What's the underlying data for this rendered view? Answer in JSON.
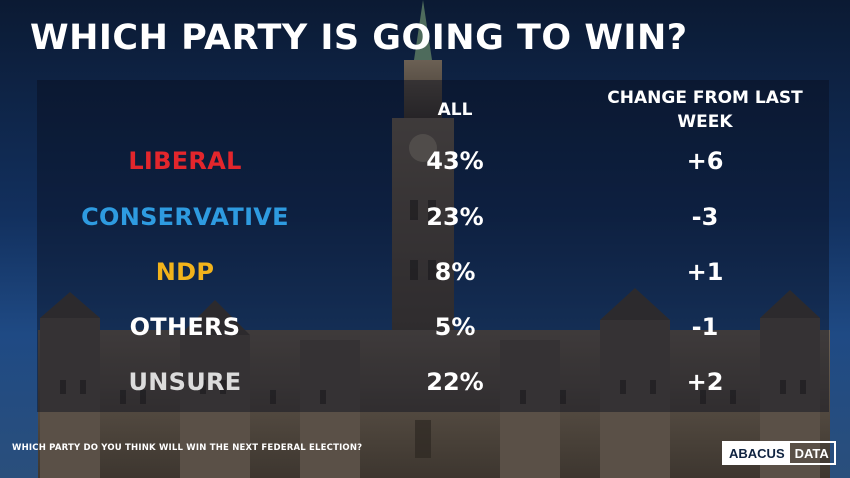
{
  "title": "WHICH PARTY IS GOING TO WIN?",
  "question": "WHICH PARTY DO YOU THINK WILL WIN THE NEXT FEDERAL ELECTION?",
  "logo": {
    "part1": "ABACUS",
    "part2": "DATA"
  },
  "colors": {
    "liberal": "#e3262c",
    "conservative": "#2e9be0",
    "ndp": "#f2b31b",
    "others": "#ffffff",
    "unsure": "#dcdcdc"
  },
  "chart_data": {
    "type": "table",
    "title": "WHICH PARTY IS GOING TO WIN?",
    "columns": [
      "ALL",
      "CHANGE FROM LAST WEEK"
    ],
    "rows": [
      {
        "party": "LIBERAL",
        "all": "43%",
        "change": "+6"
      },
      {
        "party": "CONSERVATIVE",
        "all": "23%",
        "change": "-3"
      },
      {
        "party": "NDP",
        "all": "8%",
        "change": "+1"
      },
      {
        "party": "OTHERS",
        "all": "5%",
        "change": "-1"
      },
      {
        "party": "UNSURE",
        "all": "22%",
        "change": "+2"
      }
    ]
  }
}
